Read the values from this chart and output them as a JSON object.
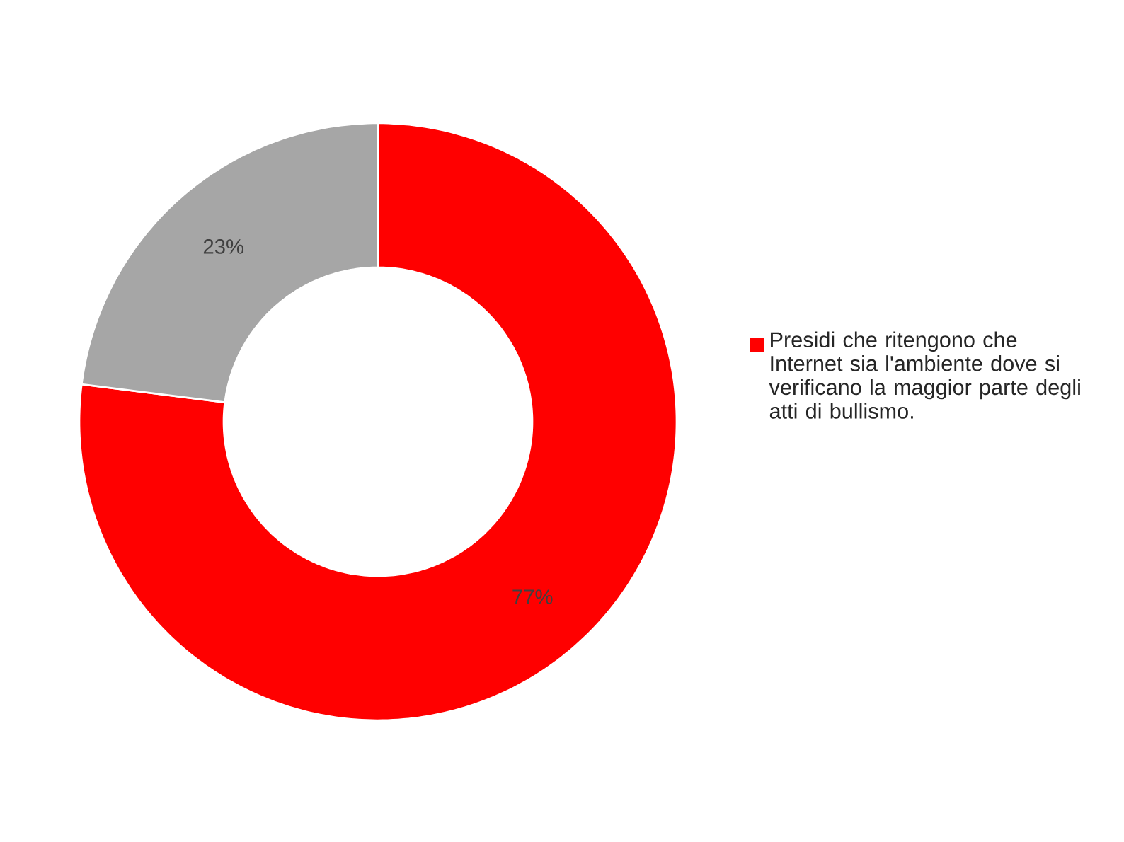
{
  "chart_data": {
    "type": "donut",
    "categories": [
      "Presidi che ritengono che Internet sia l'ambiente dove si verificano la maggior parte degli atti di bullismo.",
      null
    ],
    "values": [
      77,
      23
    ],
    "colors": [
      "#ff0000",
      "#a6a6a6"
    ],
    "value_labels": [
      "77%",
      "23%"
    ],
    "legend": "right"
  }
}
